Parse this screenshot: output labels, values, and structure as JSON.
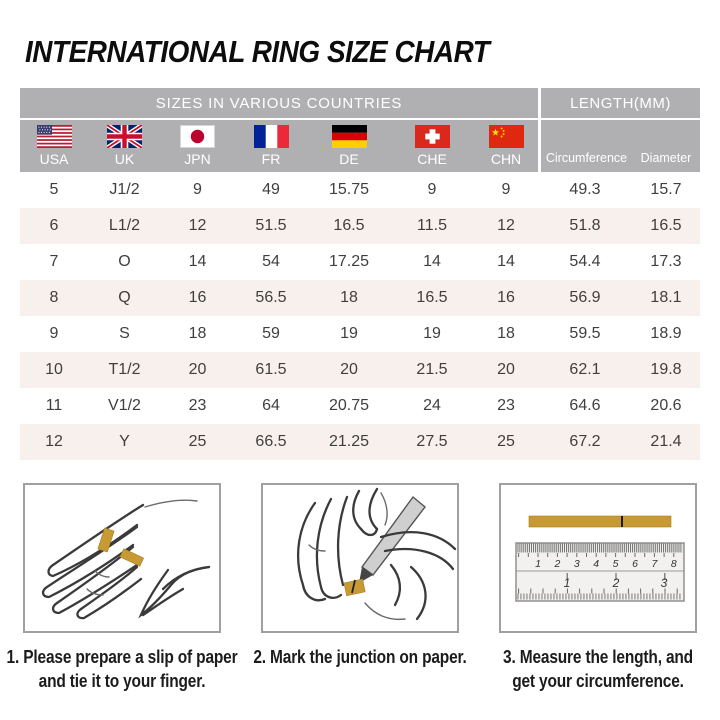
{
  "title": "INTERNATIONAL RING SIZE CHART",
  "table": {
    "header_sizes": "SIZES IN VARIOUS COUNTRIES",
    "header_length": "LENGTH(MM)",
    "countries": [
      {
        "code": "USA",
        "flag": "usa-flag-icon"
      },
      {
        "code": "UK",
        "flag": "uk-flag-icon"
      },
      {
        "code": "JPN",
        "flag": "japan-flag-icon"
      },
      {
        "code": "FR",
        "flag": "france-flag-icon"
      },
      {
        "code": "DE",
        "flag": "germany-flag-icon"
      },
      {
        "code": "CHE",
        "flag": "switzerland-flag-icon"
      },
      {
        "code": "CHN",
        "flag": "china-flag-icon"
      }
    ],
    "length_columns": [
      "Circumference",
      "Diameter"
    ]
  },
  "chart_data": {
    "type": "table",
    "title": "INTERNATIONAL RING SIZE CHART",
    "column_groups": [
      "SIZES IN VARIOUS COUNTRIES",
      "LENGTH(MM)"
    ],
    "columns": [
      "USA",
      "UK",
      "JPN",
      "FR",
      "DE",
      "CHE",
      "CHN",
      "Circumference",
      "Diameter"
    ],
    "rows": [
      [
        "5",
        "J1/2",
        "9",
        "49",
        "15.75",
        "9",
        "9",
        "49.3",
        "15.7"
      ],
      [
        "6",
        "L1/2",
        "12",
        "51.5",
        "16.5",
        "11.5",
        "12",
        "51.8",
        "16.5"
      ],
      [
        "7",
        "O",
        "14",
        "54",
        "17.25",
        "14",
        "14",
        "54.4",
        "17.3"
      ],
      [
        "8",
        "Q",
        "16",
        "56.5",
        "18",
        "16.5",
        "16",
        "56.9",
        "18.1"
      ],
      [
        "9",
        "S",
        "18",
        "59",
        "19",
        "19",
        "18",
        "59.5",
        "18.9"
      ],
      [
        "10",
        "T1/2",
        "20",
        "61.5",
        "20",
        "21.5",
        "20",
        "62.1",
        "19.8"
      ],
      [
        "11",
        "V1/2",
        "23",
        "64",
        "20.75",
        "24",
        "23",
        "64.6",
        "20.6"
      ],
      [
        "12",
        "Y",
        "25",
        "66.5",
        "21.25",
        "27.5",
        "25",
        "67.2",
        "21.4"
      ]
    ]
  },
  "steps": [
    {
      "caption": "1. Please prepare a slip of paper\nand tie it to your finger.",
      "illustration": "hand-with-paper-strip"
    },
    {
      "caption": "2. Mark the junction on paper.",
      "illustration": "marking-junction-with-pen"
    },
    {
      "caption": "3. Measure the length, and\nget your circumference.",
      "illustration": "ruler-measuring-strip"
    }
  ],
  "ruler": {
    "cm_ticks": [
      "1",
      "2",
      "3",
      "4",
      "5",
      "6",
      "7",
      "8"
    ],
    "inch_ticks": [
      "1",
      "2",
      "3"
    ]
  },
  "colors": {
    "header_gray": "#b0afb1",
    "row_alt_beige": "#f8f0ec",
    "paper_strip_gold": "#c79a33",
    "table_text": "#3f3f3f",
    "title_black": "#0d0d0d"
  }
}
